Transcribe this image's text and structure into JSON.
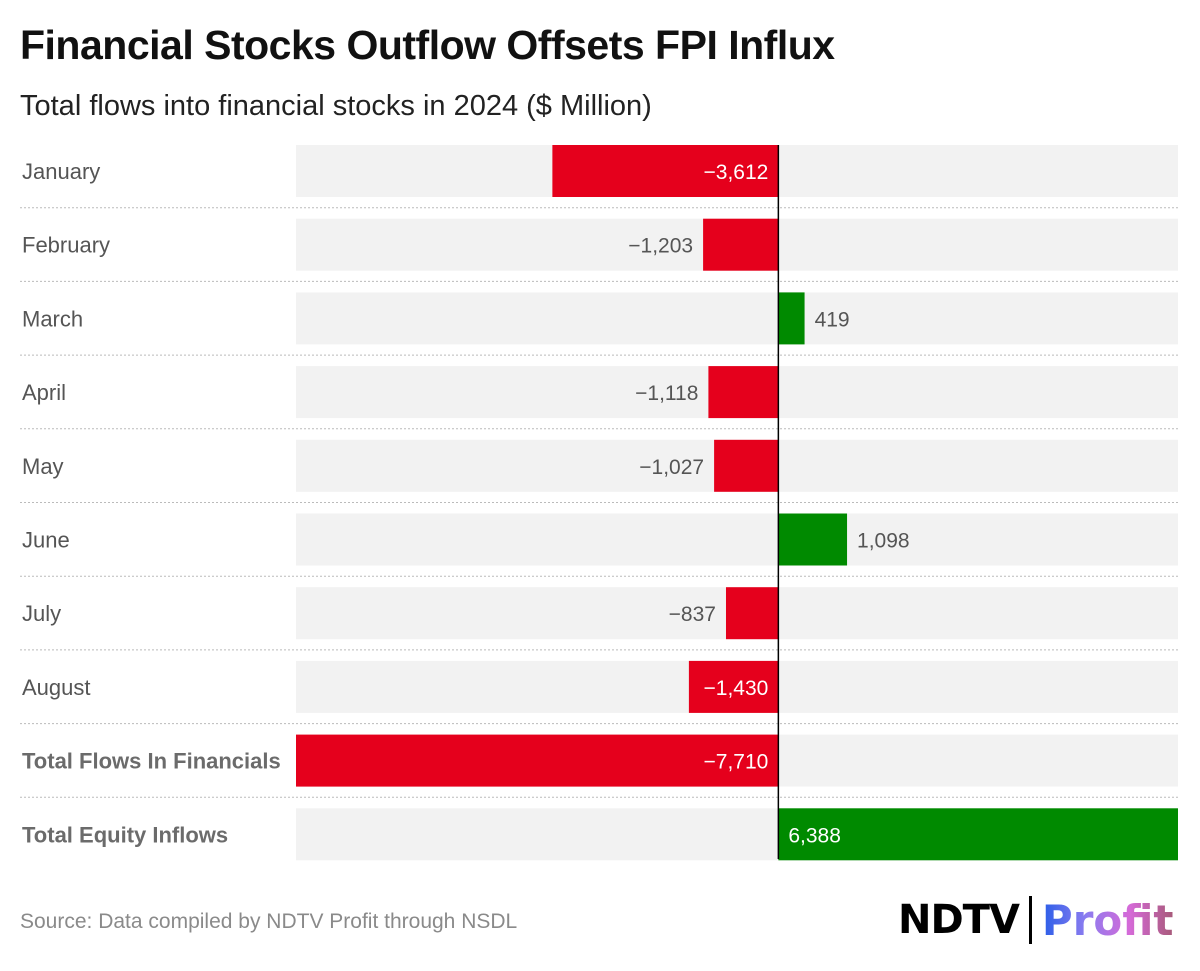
{
  "title": "Financial Stocks Outflow Offsets FPI Influx",
  "subtitle": "Total flows into financial stocks in 2024 ($ Million)",
  "source": "Source: Data compiled by NDTV Profit through NSDL",
  "logo": {
    "brand": "NDTV",
    "product": "Profit"
  },
  "colors": {
    "negative": "#e5001c",
    "positive": "#008a00",
    "track": "#f2f2f2"
  },
  "chart_data": {
    "type": "bar",
    "orientation": "horizontal",
    "categories": [
      "January",
      "February",
      "March",
      "April",
      "May",
      "June",
      "July",
      "August",
      "Total Flows In Financials",
      "Total Equity Inflows"
    ],
    "values": [
      -3612,
      -1203,
      419,
      -1118,
      -1027,
      1098,
      -837,
      -1430,
      -7710,
      6388
    ],
    "labels": [
      "−3,612",
      "−1,203",
      "419",
      "−1,118",
      "−1,027",
      "1,098",
      "−837",
      "−1,430",
      "−7,710",
      "6,388"
    ],
    "bold_categories": [
      "Total Flows In Financials",
      "Total Equity Inflows"
    ],
    "xlim": [
      -7710,
      6388
    ]
  }
}
